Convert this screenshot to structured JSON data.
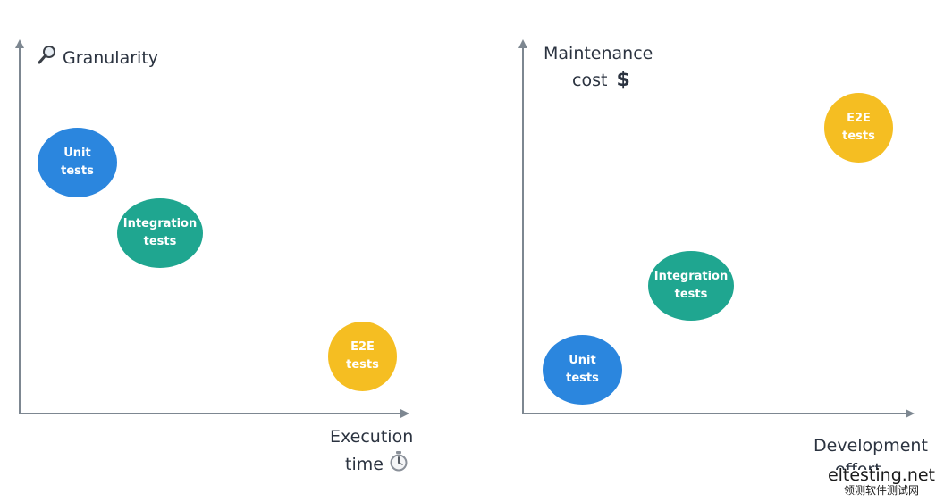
{
  "colors": {
    "unit": "#2b86de",
    "integration": "#1fa690",
    "e2e": "#f5be22",
    "axis": "#7d8791",
    "text": "#2b3340"
  },
  "left_chart": {
    "y_axis": {
      "label": "Granularity",
      "icon": "magnifier-icon"
    },
    "x_axis": {
      "label_line1": "Execution",
      "label_line2": "time",
      "icon": "stopwatch-icon"
    },
    "bubbles": {
      "unit": {
        "line1": "Unit",
        "line2": "tests"
      },
      "integration": {
        "line1": "Integration",
        "line2": "tests"
      },
      "e2e": {
        "line1": "E2E",
        "line2": "tests"
      }
    }
  },
  "right_chart": {
    "y_axis": {
      "label_line1": "Maintenance",
      "label_line2": "cost",
      "icon": "dollar-icon",
      "icon_text": "$"
    },
    "x_axis": {
      "label_line1": "Development",
      "label_line2": "effort"
    },
    "bubbles": {
      "e2e": {
        "line1": "E2E",
        "line2": "tests"
      },
      "integration": {
        "line1": "Integration",
        "line2": "tests"
      },
      "unit": {
        "line1": "Unit",
        "line2": "tests"
      }
    }
  },
  "watermark": {
    "main": "eltesting.net",
    "sub": "领测软件测试网"
  }
}
